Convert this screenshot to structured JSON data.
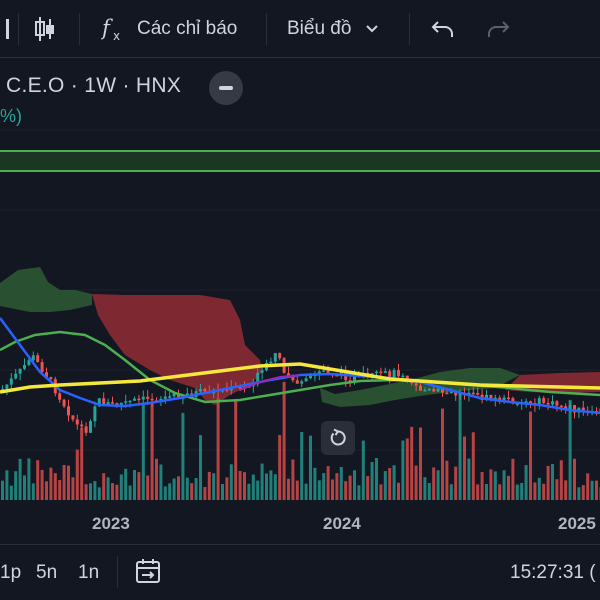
{
  "toolbar": {
    "indicators_label": "Các chỉ báo",
    "chart_type_label": "Biểu đồ"
  },
  "legend": {
    "symbol_line": "C.E.O · 1W · HNX",
    "change_fragment": "%)"
  },
  "time_axis": {
    "labels": [
      "2023",
      "2024",
      "2025"
    ]
  },
  "bottom_bar": {
    "ranges": [
      "1p",
      "5n",
      "1n"
    ],
    "clock": "15:27:31 ("
  },
  "colors": {
    "background": "#131722",
    "up": "#26a69a",
    "down": "#ef5350",
    "ma_yellow": "#f5e83c",
    "ma_blue": "#2962ff",
    "ma_green": "#4caf50",
    "cloud_red": "#8b2b33",
    "cloud_green": "#2e5a33"
  },
  "icons": {
    "candles": "candlestick-icon",
    "fx": "function-icon",
    "undo": "undo-icon",
    "redo": "redo-icon",
    "reset": "reset-icon",
    "date_range": "date-range-icon"
  },
  "chart_data": {
    "type": "candlestick",
    "x_ticks": [
      "2023",
      "2024",
      "2025"
    ],
    "series": [
      {
        "indicator": "price",
        "approx_close_path": [
          30,
          30,
          45,
          55,
          30,
          25,
          30,
          40,
          48,
          42,
          45,
          38,
          36,
          32,
          30
        ]
      },
      {
        "indicator": "ma_yellow"
      },
      {
        "indicator": "ma_blue"
      },
      {
        "indicator": "ma_green"
      },
      {
        "indicator": "ichimoku_cloud"
      },
      {
        "indicator": "volume"
      }
    ]
  }
}
